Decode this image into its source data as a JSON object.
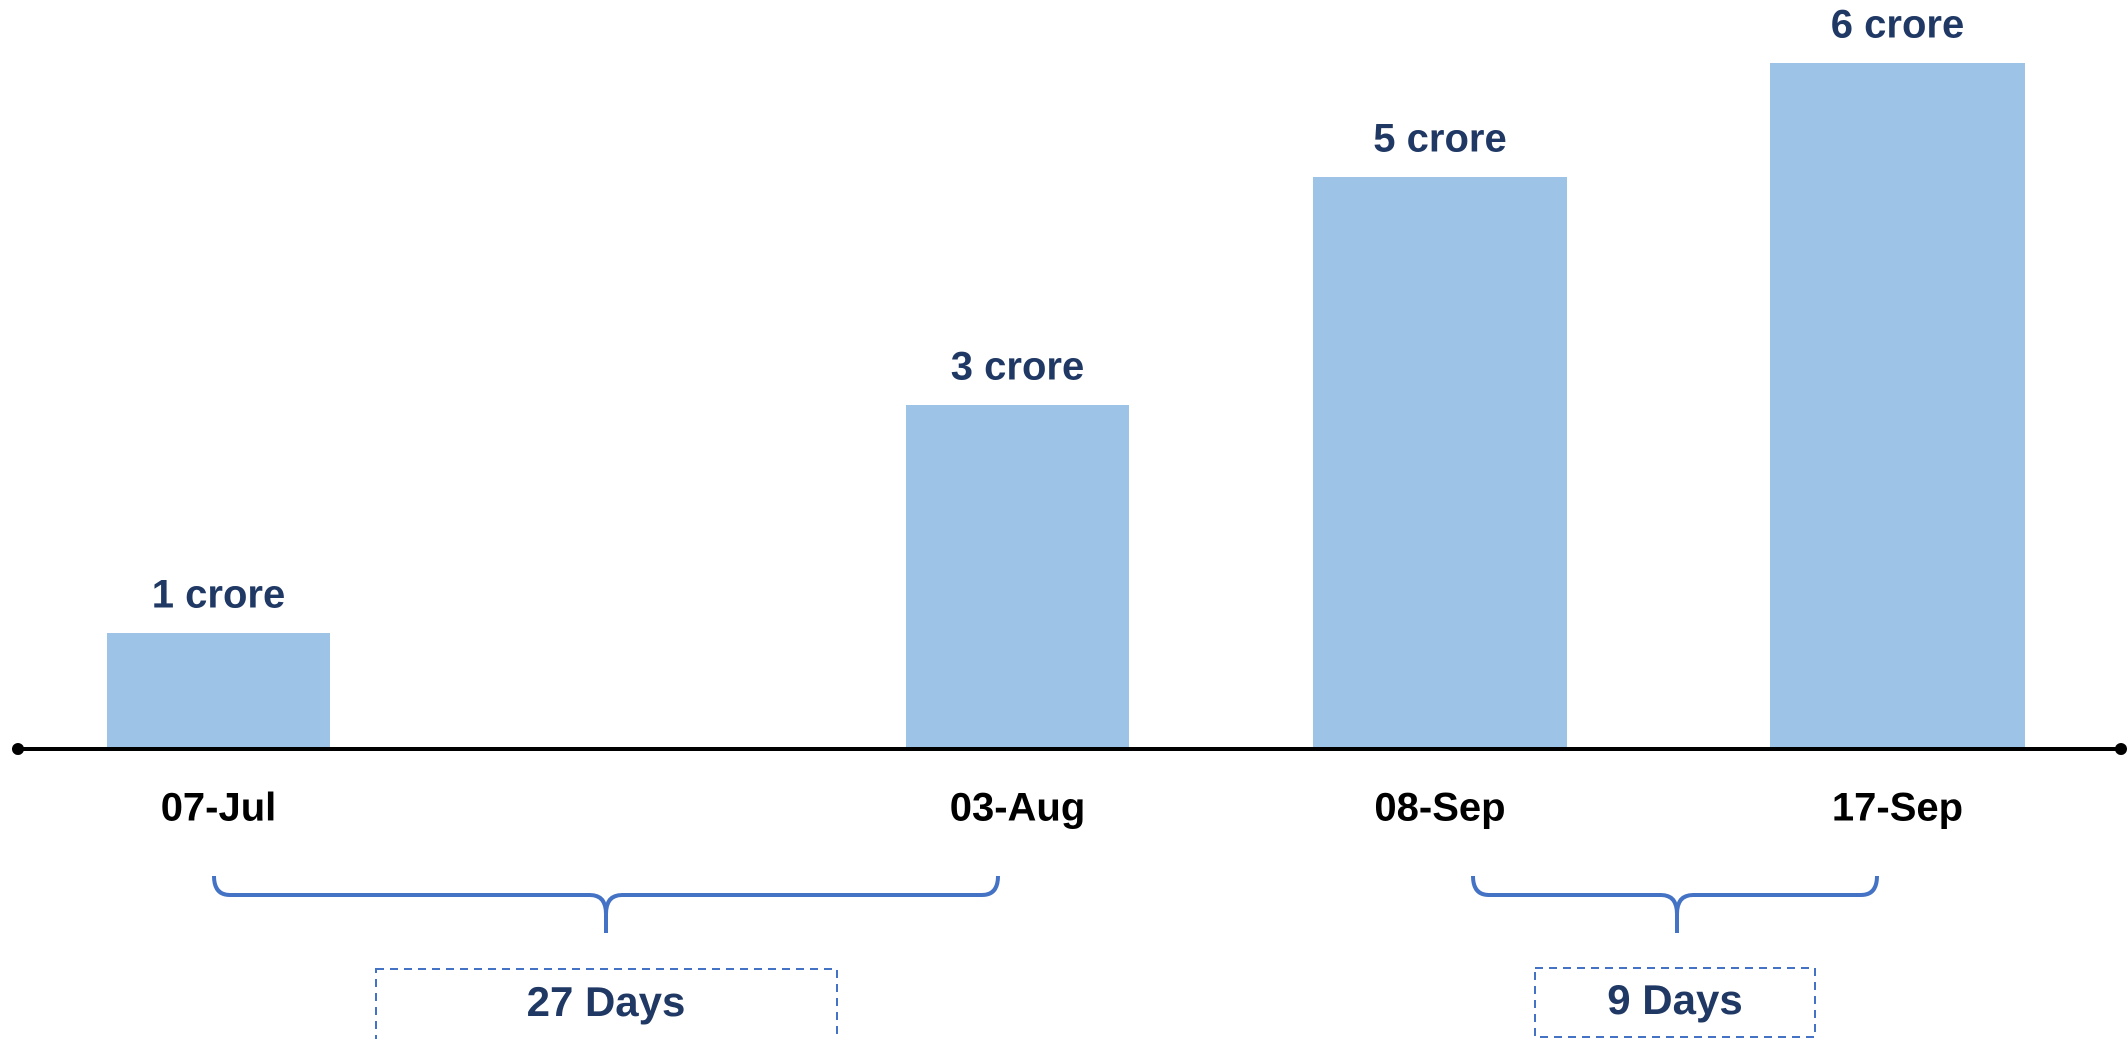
{
  "chart_data": {
    "type": "bar",
    "categories": [
      "07-Jul",
      "03-Aug",
      "08-Sep",
      "17-Sep"
    ],
    "values": [
      1,
      3,
      5,
      6
    ],
    "value_labels": [
      "1 crore",
      "3 crore",
      "5 crore",
      "6 crore"
    ],
    "color": "#9dc3e6",
    "annotations": [
      {
        "text": "27 Days"
      },
      {
        "text": "9 Days"
      }
    ]
  }
}
